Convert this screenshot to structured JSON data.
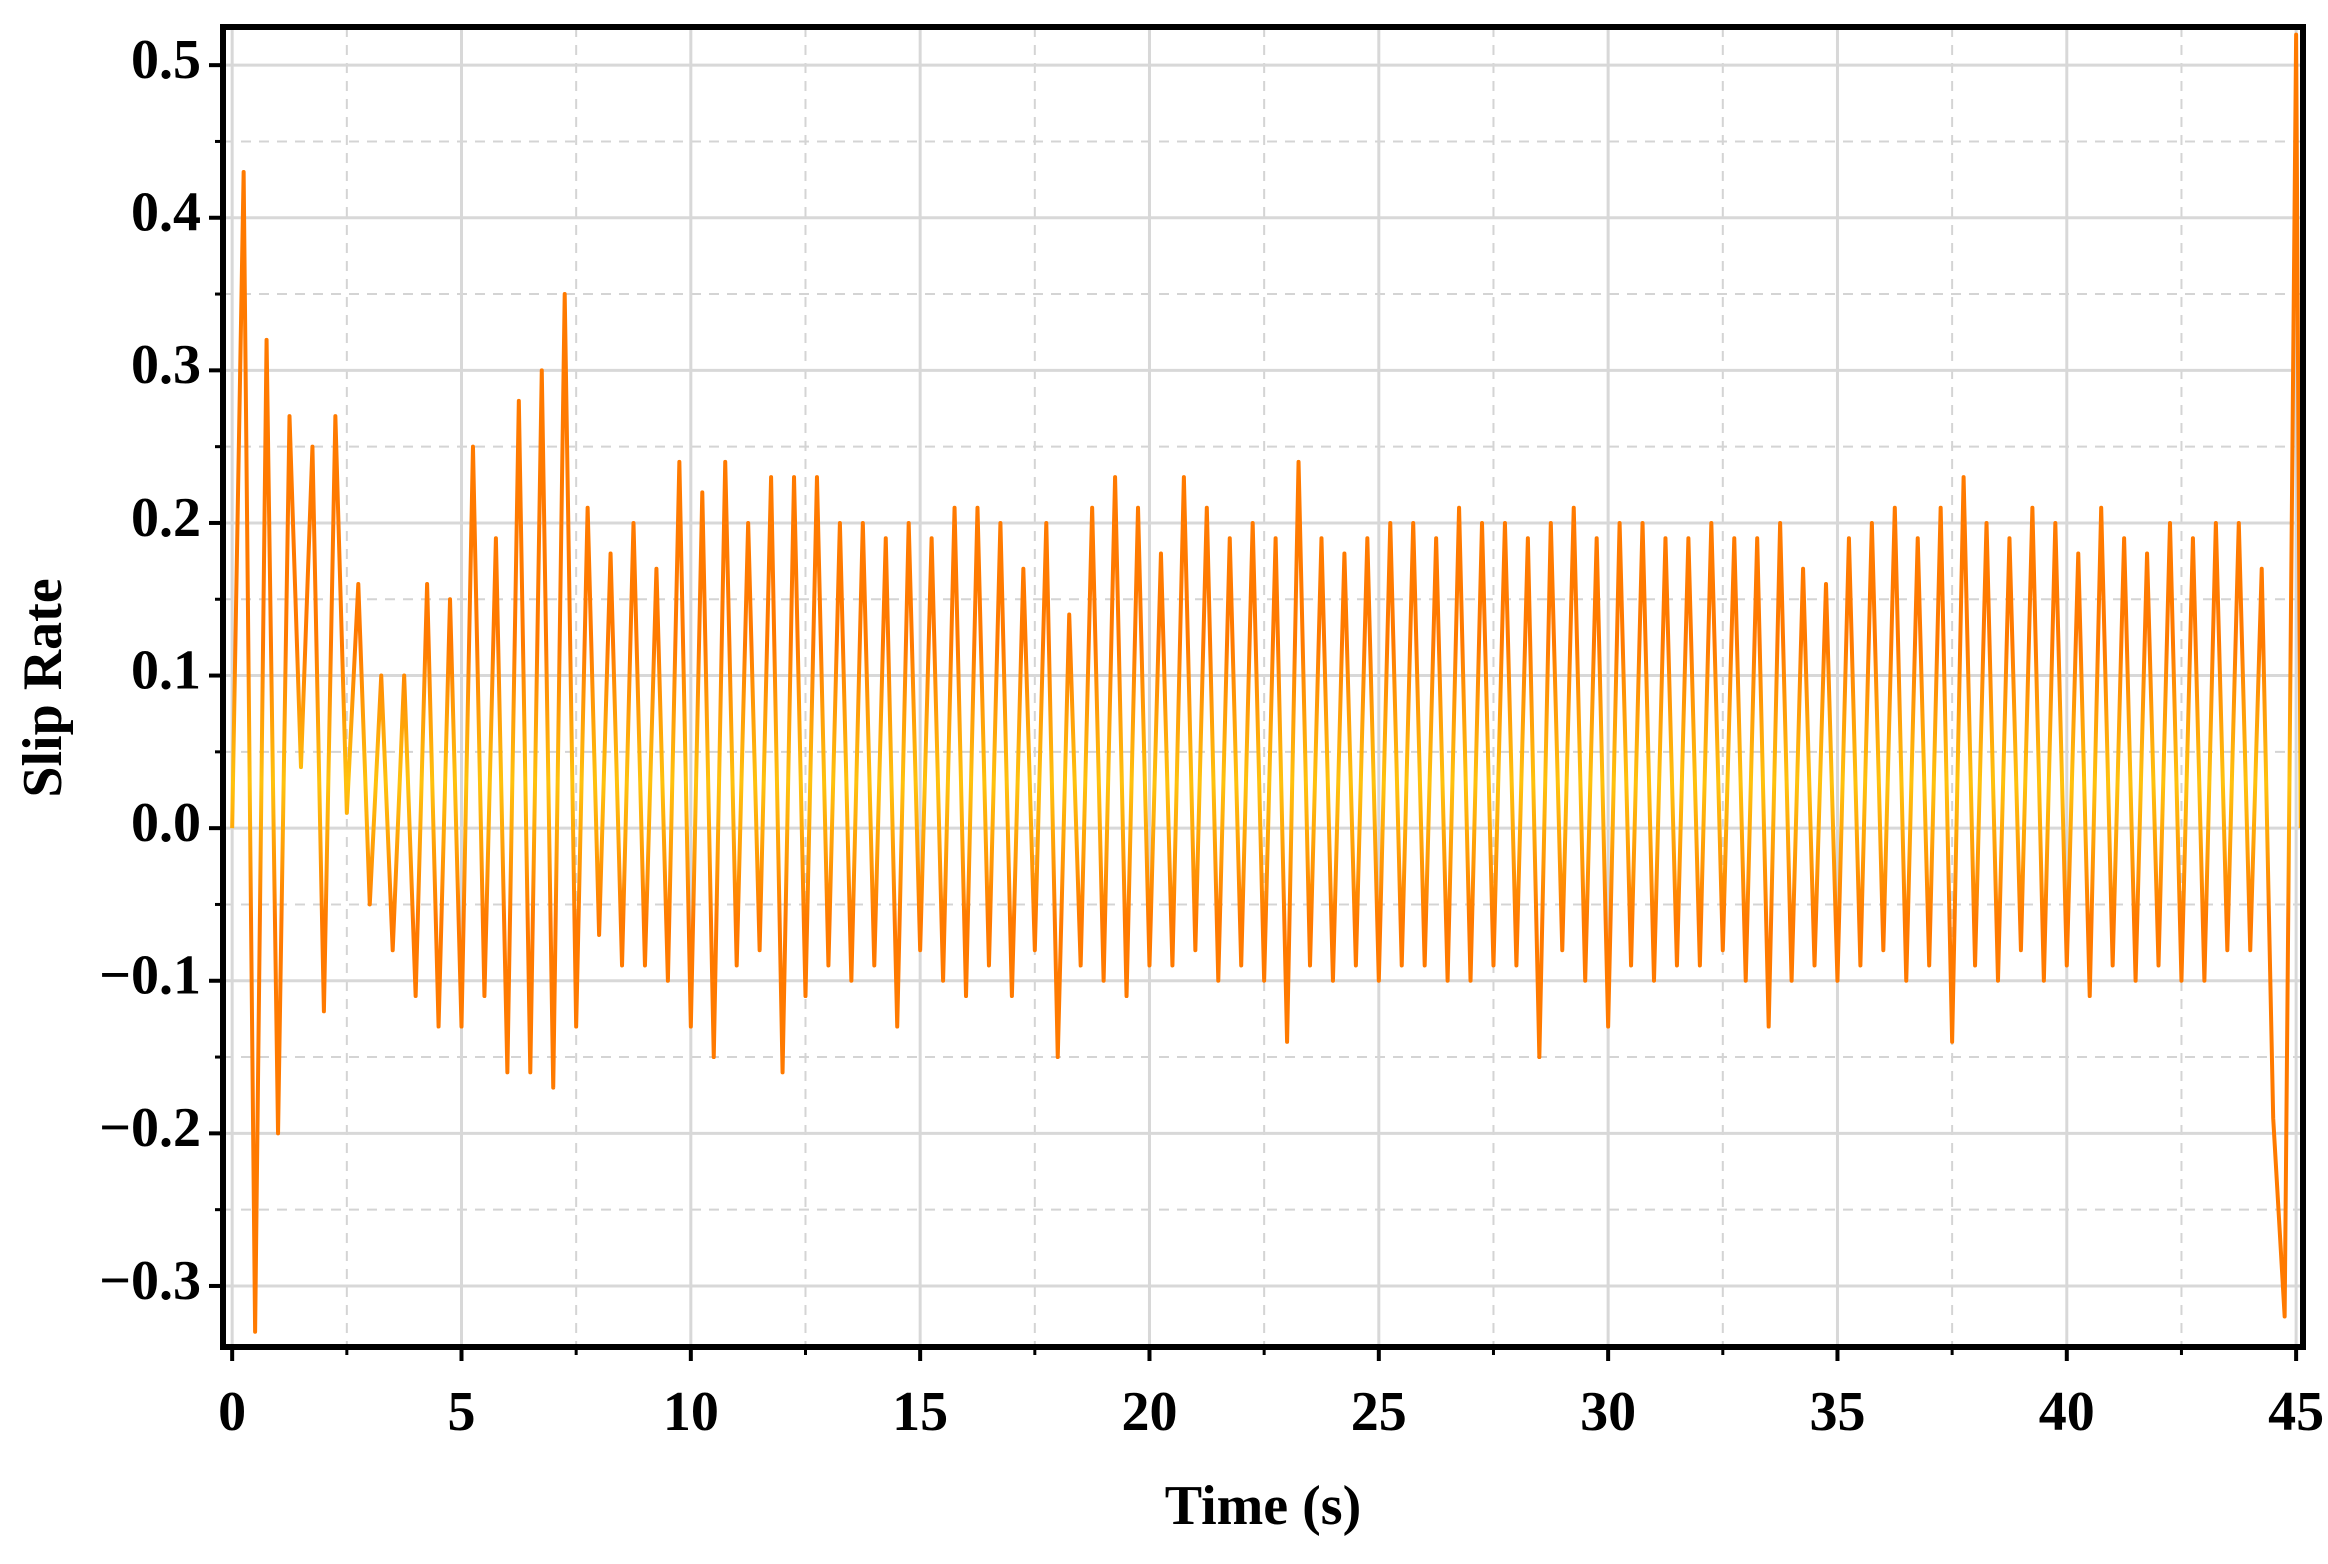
{
  "chart_data": {
    "type": "line",
    "xlabel": "Time (s)",
    "ylabel": "Slip Rate",
    "xlim": [
      -0.2,
      45.15
    ],
    "ylim": [
      -0.34,
      0.525
    ],
    "xticks": [
      0,
      5,
      10,
      15,
      20,
      25,
      30,
      35,
      40,
      45
    ],
    "yticks": [
      {
        "value": -0.3,
        "label": "−0.3"
      },
      {
        "value": -0.2,
        "label": "−0.2"
      },
      {
        "value": -0.1,
        "label": "−0.1"
      },
      {
        "value": 0,
        "label": "0.0"
      },
      0.1,
      0.2,
      0.3,
      0.4,
      0.5
    ],
    "x_minor_ticks": [
      2.5,
      7.5,
      12.5,
      17.5,
      22.5,
      27.5,
      32.5,
      37.5,
      42.5
    ],
    "y_minor_ticks": [
      -0.25,
      -0.15,
      -0.05,
      0.05,
      0.15,
      0.25,
      0.35,
      0.45
    ],
    "grid": true,
    "series": [
      {
        "color": "#ff7a00",
        "center_color": "#ffc20e",
        "x": [
          0,
          0.25,
          0.5,
          0.75,
          1,
          1.25,
          1.5,
          1.75,
          2,
          2.25,
          2.5,
          2.75,
          3,
          3.25,
          3.5,
          3.75,
          4,
          4.25,
          4.5,
          4.75,
          5,
          5.25,
          5.5,
          5.75,
          6,
          6.25,
          6.5,
          6.75,
          7,
          7.25,
          7.5,
          7.75,
          8,
          8.25,
          8.5,
          8.75,
          9,
          9.25,
          9.5,
          9.75,
          10,
          10.25,
          10.5,
          10.75,
          11,
          11.25,
          11.5,
          11.75,
          12,
          12.25,
          12.5,
          12.75,
          13,
          13.25,
          13.5,
          13.75,
          14,
          14.25,
          14.5,
          14.75,
          15,
          15.25,
          15.5,
          15.75,
          16,
          16.25,
          16.5,
          16.75,
          17,
          17.25,
          17.5,
          17.75,
          18,
          18.25,
          18.5,
          18.75,
          19,
          19.25,
          19.5,
          19.75,
          20,
          20.25,
          20.5,
          20.75,
          21,
          21.25,
          21.5,
          21.75,
          22,
          22.25,
          22.5,
          22.75,
          23,
          23.25,
          23.5,
          23.75,
          24,
          24.25,
          24.5,
          24.75,
          25,
          25.25,
          25.5,
          25.75,
          26,
          26.25,
          26.5,
          26.75,
          27,
          27.25,
          27.5,
          27.75,
          28,
          28.25,
          28.5,
          28.75,
          29,
          29.25,
          29.5,
          29.75,
          30,
          30.25,
          30.5,
          30.75,
          31,
          31.25,
          31.5,
          31.75,
          32,
          32.25,
          32.5,
          32.75,
          33,
          33.25,
          33.5,
          33.75,
          34,
          34.25,
          34.5,
          34.75,
          35,
          35.25,
          35.5,
          35.75,
          36,
          36.25,
          36.5,
          36.75,
          37,
          37.25,
          37.5,
          37.75,
          38,
          38.25,
          38.5,
          38.75,
          39,
          39.25,
          39.5,
          39.75,
          40,
          40.25,
          40.5,
          40.75,
          41,
          41.25,
          41.5,
          41.75,
          42,
          42.25,
          42.5,
          42.75,
          43,
          43.25,
          43.5,
          43.75,
          44,
          44.25,
          44.5,
          44.75,
          45,
          45.1
        ],
        "values": [
          0.0,
          0.43,
          -0.33,
          0.32,
          -0.2,
          0.27,
          0.04,
          0.25,
          -0.12,
          0.27,
          0.01,
          0.16,
          -0.05,
          0.1,
          -0.08,
          0.1,
          -0.11,
          0.16,
          -0.13,
          0.15,
          -0.13,
          0.25,
          -0.11,
          0.19,
          -0.16,
          0.28,
          -0.16,
          0.3,
          -0.17,
          0.35,
          -0.13,
          0.21,
          -0.07,
          0.18,
          -0.09,
          0.2,
          -0.09,
          0.17,
          -0.1,
          0.24,
          -0.13,
          0.22,
          -0.15,
          0.24,
          -0.09,
          0.2,
          -0.08,
          0.23,
          -0.16,
          0.23,
          -0.11,
          0.23,
          -0.09,
          0.2,
          -0.1,
          0.2,
          -0.09,
          0.19,
          -0.13,
          0.2,
          -0.08,
          0.19,
          -0.1,
          0.21,
          -0.11,
          0.21,
          -0.09,
          0.2,
          -0.11,
          0.17,
          -0.08,
          0.2,
          -0.15,
          0.14,
          -0.09,
          0.21,
          -0.1,
          0.23,
          -0.11,
          0.21,
          -0.09,
          0.18,
          -0.09,
          0.23,
          -0.08,
          0.21,
          -0.1,
          0.19,
          -0.09,
          0.2,
          -0.1,
          0.19,
          -0.14,
          0.24,
          -0.09,
          0.19,
          -0.1,
          0.18,
          -0.09,
          0.19,
          -0.1,
          0.2,
          -0.09,
          0.2,
          -0.09,
          0.19,
          -0.1,
          0.21,
          -0.1,
          0.2,
          -0.09,
          0.2,
          -0.09,
          0.19,
          -0.15,
          0.2,
          -0.08,
          0.21,
          -0.1,
          0.19,
          -0.13,
          0.2,
          -0.09,
          0.2,
          -0.1,
          0.19,
          -0.09,
          0.19,
          -0.09,
          0.2,
          -0.08,
          0.19,
          -0.1,
          0.19,
          -0.13,
          0.2,
          -0.1,
          0.17,
          -0.09,
          0.16,
          -0.1,
          0.19,
          -0.09,
          0.2,
          -0.08,
          0.21,
          -0.1,
          0.19,
          -0.09,
          0.21,
          -0.14,
          0.23,
          -0.09,
          0.2,
          -0.1,
          0.19,
          -0.08,
          0.21,
          -0.1,
          0.2,
          -0.09,
          0.18,
          -0.11,
          0.21,
          -0.09,
          0.19,
          -0.1,
          0.18,
          -0.09,
          0.2,
          -0.1,
          0.19,
          -0.1,
          0.2,
          -0.08,
          0.2,
          -0.08,
          0.17,
          -0.19,
          -0.32,
          0.52,
          0.0
        ]
      }
    ]
  }
}
